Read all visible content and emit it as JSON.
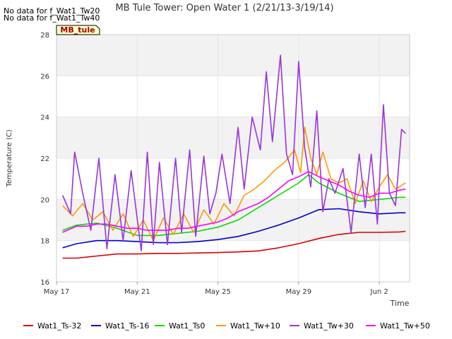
{
  "chart_data": {
    "type": "line",
    "title": "MB Tule Tower: Open Water 1 (2/21/13-3/19/14)",
    "xlabel": "Time",
    "ylabel": "Temperature (C)",
    "ylim": [
      16,
      28
    ],
    "yticks": [
      16,
      18,
      20,
      22,
      24,
      26,
      28
    ],
    "xlim": [
      0,
      17.5
    ],
    "xticks": [
      {
        "x": 0,
        "label": "May 17"
      },
      {
        "x": 4,
        "label": "May 21"
      },
      {
        "x": 8,
        "label": "May 25"
      },
      {
        "x": 12,
        "label": "May 29"
      },
      {
        "x": 16,
        "label": "Jun 2"
      }
    ],
    "grid": true,
    "banding": [
      [
        18,
        20
      ],
      [
        22,
        24
      ],
      [
        26,
        28
      ]
    ],
    "notes": [
      "No data for f_Wat1_Tw20",
      "No data for f_Wat1_Tw40"
    ],
    "station_label": "MB_tule",
    "legend_position": "bottom",
    "series": [
      {
        "name": "Wat1_Ts-32",
        "color": "#dd0000",
        "x": [
          0.3,
          1,
          2,
          3,
          4,
          5,
          6,
          7,
          8,
          9,
          10,
          11,
          12,
          13,
          14,
          15,
          16,
          17,
          17.3
        ],
        "y": [
          17.15,
          17.15,
          17.25,
          17.35,
          17.35,
          17.38,
          17.38,
          17.4,
          17.42,
          17.45,
          17.5,
          17.65,
          17.85,
          18.1,
          18.3,
          18.4,
          18.4,
          18.42,
          18.45
        ]
      },
      {
        "name": "Wat1_Ts-16",
        "color": "#0000cc",
        "x": [
          0.3,
          1,
          2,
          3,
          4,
          5,
          6,
          7,
          8,
          9,
          10,
          11,
          12,
          13,
          14,
          15,
          16,
          17,
          17.3
        ],
        "y": [
          17.65,
          17.85,
          18.0,
          18.0,
          17.95,
          17.9,
          17.9,
          17.95,
          18.05,
          18.2,
          18.45,
          18.75,
          19.1,
          19.5,
          19.55,
          19.4,
          19.3,
          19.35,
          19.35
        ]
      },
      {
        "name": "Wat1_Ts0",
        "color": "#00dd00",
        "x": [
          0.3,
          1,
          2,
          3,
          4,
          5,
          6,
          7,
          8,
          9,
          10,
          11,
          12,
          12.5,
          13,
          14,
          15,
          16,
          17,
          17.3
        ],
        "y": [
          18.5,
          18.75,
          18.85,
          18.6,
          18.25,
          18.25,
          18.35,
          18.45,
          18.65,
          19.0,
          19.6,
          20.2,
          20.8,
          21.2,
          20.8,
          20.3,
          19.9,
          20.0,
          20.1,
          20.1
        ]
      },
      {
        "name": "Wat1_Tw+10",
        "color": "#ff9900",
        "x": [
          0.3,
          0.8,
          1.3,
          1.8,
          2.3,
          2.8,
          3.3,
          3.8,
          4.3,
          4.8,
          5.3,
          5.8,
          6.3,
          6.8,
          7.3,
          7.8,
          8.3,
          8.8,
          9.3,
          9.8,
          10.3,
          10.8,
          11.3,
          11.8,
          12.1,
          12.3,
          12.6,
          12.9,
          13.2,
          13.6,
          14.0,
          14.4,
          14.8,
          15.2,
          15.6,
          16.0,
          16.4,
          16.8,
          17.3
        ],
        "y": [
          19.7,
          19.2,
          19.8,
          19.0,
          19.4,
          18.5,
          19.3,
          18.2,
          19.0,
          18.0,
          19.1,
          18.3,
          19.3,
          18.4,
          19.5,
          18.8,
          19.8,
          19.2,
          20.2,
          20.5,
          20.9,
          21.4,
          21.8,
          22.4,
          21.3,
          23.5,
          22.0,
          21.2,
          22.3,
          21.0,
          20.8,
          21.0,
          19.8,
          20.9,
          19.9,
          20.6,
          21.2,
          20.5,
          20.8
        ]
      },
      {
        "name": "Wat1_Tw+30",
        "color": "#9933dd",
        "x": [
          0.3,
          0.7,
          0.9,
          1.3,
          1.7,
          2.1,
          2.5,
          2.9,
          3.3,
          3.7,
          4.2,
          4.5,
          4.8,
          5.1,
          5.5,
          5.9,
          6.2,
          6.6,
          6.9,
          7.3,
          7.6,
          7.9,
          8.2,
          8.6,
          9.0,
          9.3,
          9.7,
          10.1,
          10.4,
          10.7,
          11.1,
          11.4,
          11.7,
          12.0,
          12.3,
          12.6,
          12.9,
          13.2,
          13.5,
          13.8,
          14.2,
          14.6,
          15.0,
          15.3,
          15.6,
          15.9,
          16.2,
          16.5,
          16.8,
          17.1,
          17.3
        ],
        "y": [
          20.2,
          19.3,
          22.3,
          20.3,
          18.5,
          22.0,
          17.6,
          21.2,
          18.0,
          21.4,
          17.5,
          22.3,
          17.8,
          21.8,
          17.8,
          22.0,
          18.4,
          22.4,
          18.2,
          22.1,
          19.3,
          20.3,
          22.2,
          19.8,
          23.5,
          20.5,
          24.0,
          22.4,
          26.2,
          22.8,
          27.0,
          22.2,
          21.2,
          26.7,
          22.5,
          20.6,
          24.3,
          19.4,
          21.0,
          20.3,
          21.5,
          18.4,
          22.2,
          19.6,
          22.2,
          18.8,
          24.6,
          20.3,
          19.7,
          23.4,
          23.2
        ]
      },
      {
        "name": "Wat1_Tw+50",
        "color": "#ff00ff",
        "x": [
          0.3,
          1,
          1.5,
          2,
          2.5,
          3,
          3.5,
          4,
          4.5,
          5,
          5.5,
          6,
          6.5,
          7,
          7.5,
          8,
          8.5,
          9,
          9.5,
          10,
          10.5,
          11,
          11.5,
          12,
          12.5,
          13,
          13.5,
          14,
          14.5,
          15,
          15.5,
          16,
          16.5,
          17,
          17.3
        ],
        "y": [
          18.4,
          18.7,
          18.7,
          18.8,
          18.8,
          18.7,
          18.6,
          18.6,
          18.5,
          18.5,
          18.5,
          18.6,
          18.6,
          18.7,
          18.8,
          18.9,
          19.1,
          19.4,
          19.6,
          19.8,
          20.1,
          20.5,
          20.9,
          21.1,
          21.35,
          21.1,
          20.9,
          20.7,
          20.4,
          20.2,
          20.1,
          20.3,
          20.3,
          20.45,
          20.5
        ]
      }
    ]
  }
}
